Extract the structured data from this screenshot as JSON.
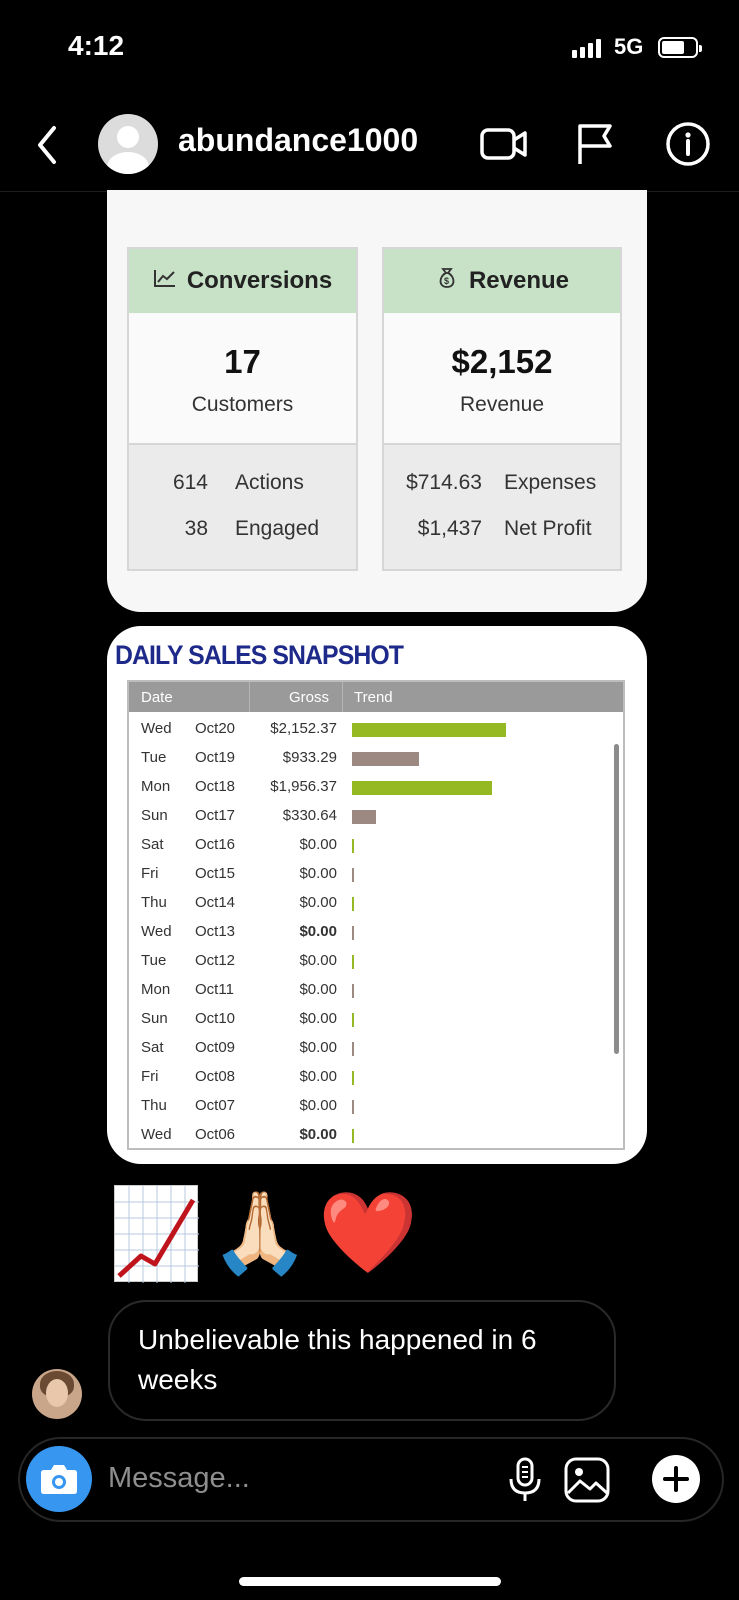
{
  "status_bar": {
    "time": "4:12",
    "network": "5G"
  },
  "header": {
    "username": "abundance1000"
  },
  "dashboard": {
    "conversions": {
      "title": "Conversions",
      "value": "17",
      "value_label": "Customers",
      "rows": [
        {
          "num": "614",
          "label": "Actions"
        },
        {
          "num": "38",
          "label": "Engaged"
        }
      ]
    },
    "revenue": {
      "title": "Revenue",
      "value": "$2,152",
      "value_label": "Revenue",
      "rows": [
        {
          "num": "$714.63",
          "label": "Expenses"
        },
        {
          "num": "$1,437",
          "label": "Net Profit"
        }
      ]
    }
  },
  "snapshot": {
    "title": "DAILY SALES SNAPSHOT",
    "columns": [
      "Date",
      "Gross",
      "Trend"
    ],
    "rows": [
      {
        "day": "Wed",
        "date": "Oct20",
        "gross": "$2,152.37",
        "trend": 2152.37,
        "color": "#94b923",
        "bold": false
      },
      {
        "day": "Tue",
        "date": "Oct19",
        "gross": "$933.29",
        "trend": 933.29,
        "color": "#9c8a82",
        "bold": false
      },
      {
        "day": "Mon",
        "date": "Oct18",
        "gross": "$1,956.37",
        "trend": 1956.37,
        "color": "#94b923",
        "bold": false
      },
      {
        "day": "Sun",
        "date": "Oct17",
        "gross": "$330.64",
        "trend": 330.64,
        "color": "#9c8a82",
        "bold": false
      },
      {
        "day": "Sat",
        "date": "Oct16",
        "gross": "$0.00",
        "trend": 0,
        "color": "#94b923",
        "bold": false
      },
      {
        "day": "Fri",
        "date": "Oct15",
        "gross": "$0.00",
        "trend": 0,
        "color": "#9c8a82",
        "bold": false
      },
      {
        "day": "Thu",
        "date": "Oct14",
        "gross": "$0.00",
        "trend": 0,
        "color": "#94b923",
        "bold": false
      },
      {
        "day": "Wed",
        "date": "Oct13",
        "gross": "$0.00",
        "trend": 0,
        "color": "#9c8a82",
        "bold": true
      },
      {
        "day": "Tue",
        "date": "Oct12",
        "gross": "$0.00",
        "trend": 0,
        "color": "#94b923",
        "bold": false
      },
      {
        "day": "Mon",
        "date": "Oct11",
        "gross": "$0.00",
        "trend": 0,
        "color": "#9c8a82",
        "bold": false
      },
      {
        "day": "Sun",
        "date": "Oct10",
        "gross": "$0.00",
        "trend": 0,
        "color": "#94b923",
        "bold": false
      },
      {
        "day": "Sat",
        "date": "Oct09",
        "gross": "$0.00",
        "trend": 0,
        "color": "#9c8a82",
        "bold": false
      },
      {
        "day": "Fri",
        "date": "Oct08",
        "gross": "$0.00",
        "trend": 0,
        "color": "#94b923",
        "bold": false
      },
      {
        "day": "Thu",
        "date": "Oct07",
        "gross": "$0.00",
        "trend": 0,
        "color": "#9c8a82",
        "bold": false
      },
      {
        "day": "Wed",
        "date": "Oct06",
        "gross": "$0.00",
        "trend": 0,
        "color": "#94b923",
        "bold": true
      }
    ]
  },
  "reactions": {
    "emoji_praying": "🙏🏻",
    "emoji_heart": "❤️"
  },
  "message": {
    "text": "Unbelievable this happened in 6 weeks"
  },
  "composer": {
    "placeholder": "Message..."
  },
  "colors": {
    "accent_blue": "#3797f0",
    "header_green": "#c7e2c7",
    "title_navy": "#1e2a8a"
  },
  "icons": [
    "back-chevron-icon",
    "video-call-icon",
    "flag-icon",
    "info-icon",
    "money-bag-icon",
    "line-chart-icon",
    "camera-icon",
    "microphone-icon",
    "gallery-icon",
    "plus-icon"
  ]
}
